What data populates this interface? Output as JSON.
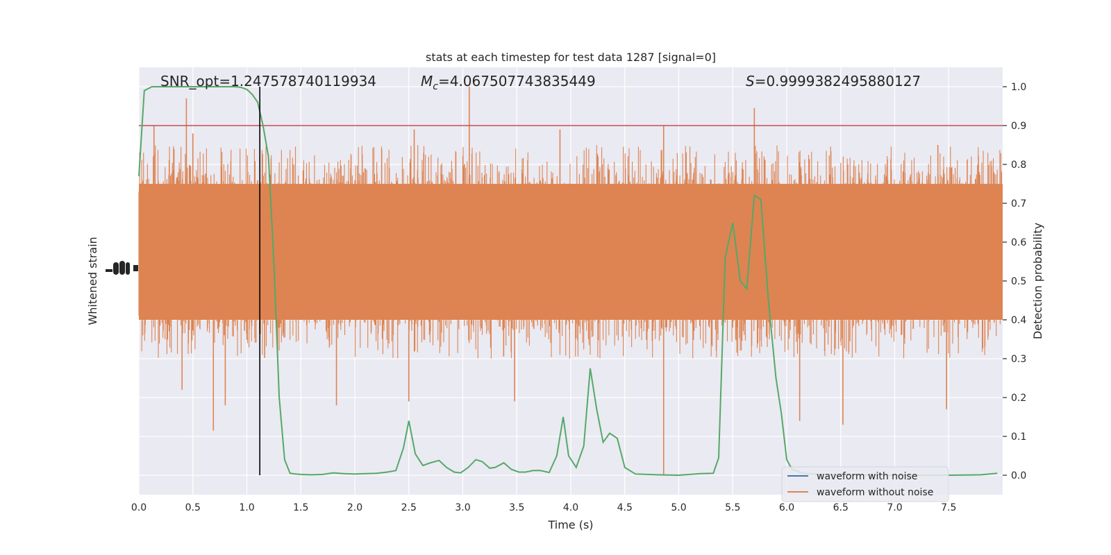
{
  "chart_data": {
    "type": "line",
    "title": "stats at each timestep for test data 1287 [signal=0]",
    "xlabel": "Time (s)",
    "ylabel_left": "Whitened strain",
    "ylabel_right": "Detection probability",
    "xlim": [
      0,
      8
    ],
    "ylim_right": [
      -0.05,
      1.05
    ],
    "x_ticks": [
      0.0,
      0.5,
      1.0,
      1.5,
      2.0,
      2.5,
      3.0,
      3.5,
      4.0,
      4.5,
      5.0,
      5.5,
      6.0,
      6.5,
      7.0,
      7.5
    ],
    "x_tick_labels": [
      "0.0",
      "0.5",
      "1.0",
      "1.5",
      "2.0",
      "2.5",
      "3.0",
      "3.5",
      "4.0",
      "4.5",
      "5.0",
      "5.5",
      "6.0",
      "6.5",
      "7.0",
      "7.5"
    ],
    "y_right_ticks": [
      0.0,
      0.1,
      0.2,
      0.3,
      0.4,
      0.5,
      0.6,
      0.7,
      0.8,
      0.9,
      1.0
    ],
    "y_right_tick_labels": [
      "0.0",
      "0.1",
      "0.2",
      "0.3",
      "0.4",
      "0.5",
      "0.6",
      "0.7",
      "0.8",
      "0.9",
      "1.0"
    ],
    "grid": true,
    "background": "#eaeaf2",
    "annotations": {
      "snr": "SNR_opt=1.247578740119934",
      "mc_symbol": "M",
      "mc_sub": "c",
      "mc_value": "=4.067507743835449",
      "s_symbol": "S",
      "s_value": "=0.9999382495880127"
    },
    "threshold": {
      "value": 0.9,
      "color": "#c44e52"
    },
    "vline": {
      "x": 1.12,
      "color": "#000000"
    },
    "legend": {
      "position": "lower-right",
      "entries": [
        {
          "label": "waveform with noise",
          "color": "#4c72b0"
        },
        {
          "label": "waveform without noise",
          "color": "#dd8452"
        }
      ]
    },
    "series": [
      {
        "name": "waveform without noise",
        "color": "#dd8452",
        "style": "dense-noise",
        "core_band": [
          0.4,
          0.75
        ],
        "spikes_up": [
          [
            0.44,
            0.97
          ],
          [
            0.14,
            0.9
          ],
          [
            3.06,
            1.0
          ],
          [
            4.86,
            0.9
          ],
          [
            5.7,
            0.945
          ],
          [
            0.5,
            0.88
          ],
          [
            2.55,
            0.89
          ],
          [
            3.9,
            0.89
          ],
          [
            7.4,
            0.85
          ]
        ],
        "spikes_down": [
          [
            0.69,
            0.115
          ],
          [
            0.8,
            0.18
          ],
          [
            0.4,
            0.22
          ],
          [
            4.86,
            0.0
          ],
          [
            2.5,
            0.19
          ],
          [
            1.83,
            0.18
          ],
          [
            6.12,
            0.14
          ],
          [
            6.52,
            0.13
          ],
          [
            7.48,
            0.17
          ],
          [
            3.48,
            0.19
          ]
        ]
      },
      {
        "name": "detection probability",
        "color": "#55a868",
        "x": [
          0.0,
          0.05,
          0.12,
          0.2,
          0.3,
          0.4,
          0.5,
          0.6,
          0.7,
          0.8,
          0.9,
          0.95,
          1.0,
          1.05,
          1.1,
          1.15,
          1.2,
          1.25,
          1.3,
          1.35,
          1.4,
          1.45,
          1.5,
          1.6,
          1.7,
          1.8,
          1.9,
          2.0,
          2.1,
          2.2,
          2.3,
          2.38,
          2.45,
          2.5,
          2.56,
          2.63,
          2.7,
          2.78,
          2.85,
          2.92,
          2.98,
          3.05,
          3.12,
          3.18,
          3.25,
          3.3,
          3.38,
          3.45,
          3.52,
          3.58,
          3.65,
          3.72,
          3.8,
          3.87,
          3.93,
          3.98,
          4.05,
          4.12,
          4.18,
          4.24,
          4.3,
          4.36,
          4.43,
          4.5,
          4.6,
          4.8,
          5.0,
          5.2,
          5.32,
          5.37,
          5.43,
          5.5,
          5.57,
          5.63,
          5.7,
          5.76,
          5.83,
          5.9,
          5.95,
          6.0,
          6.05,
          6.15,
          6.3,
          6.6,
          7.0,
          7.5,
          7.8,
          7.95
        ],
        "y": [
          0.77,
          0.99,
          1.0,
          1.0,
          1.0,
          1.0,
          1.0,
          1.0,
          1.0,
          1.0,
          1.0,
          0.998,
          0.993,
          0.98,
          0.96,
          0.9,
          0.82,
          0.55,
          0.2,
          0.04,
          0.005,
          0.003,
          0.002,
          0.001,
          0.002,
          0.006,
          0.004,
          0.003,
          0.004,
          0.005,
          0.008,
          0.012,
          0.07,
          0.14,
          0.055,
          0.025,
          0.032,
          0.038,
          0.02,
          0.008,
          0.006,
          0.02,
          0.04,
          0.035,
          0.018,
          0.02,
          0.032,
          0.015,
          0.008,
          0.008,
          0.012,
          0.012,
          0.007,
          0.05,
          0.15,
          0.05,
          0.02,
          0.075,
          0.275,
          0.17,
          0.085,
          0.108,
          0.095,
          0.02,
          0.003,
          0.001,
          0.0,
          0.004,
          0.005,
          0.045,
          0.56,
          0.65,
          0.5,
          0.48,
          0.72,
          0.71,
          0.45,
          0.25,
          0.16,
          0.04,
          0.015,
          0.005,
          0.002,
          0.001,
          0.0,
          0.0,
          0.001,
          0.005
        ]
      }
    ]
  }
}
